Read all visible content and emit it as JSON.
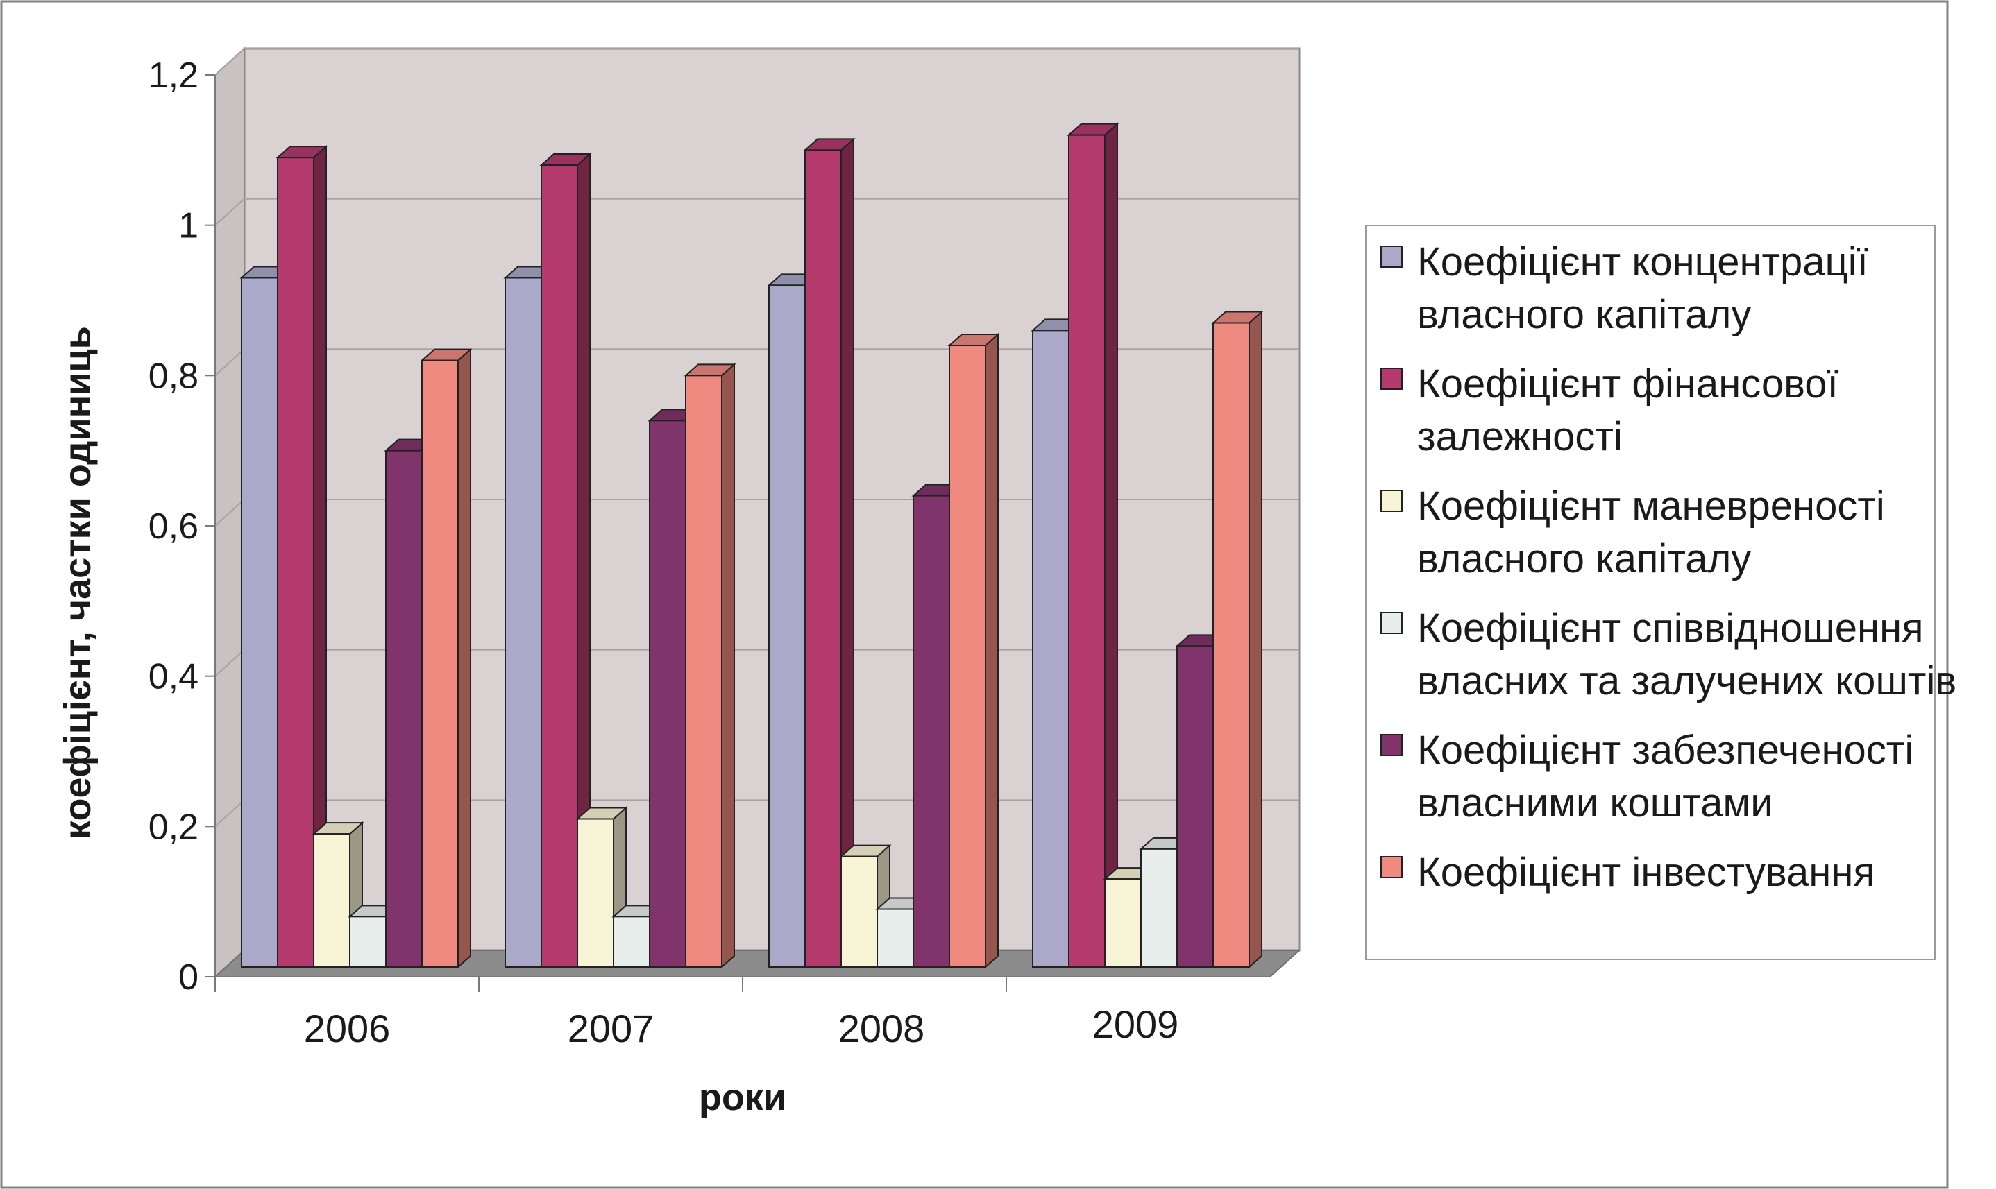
{
  "chart_data": {
    "type": "bar",
    "style": "3d-clustered-column",
    "categories": [
      "2006",
      "2007",
      "2008",
      "2009"
    ],
    "series": [
      {
        "name_lines": [
          "Коефіцієнт концентрації",
          "власного капіталу"
        ],
        "color": "#AAA9CA",
        "values": [
          0.93,
          0.93,
          0.92,
          0.86
        ]
      },
      {
        "name_lines": [
          "Коефіцієнт фінансової",
          "залежності"
        ],
        "color": "#B53A6E",
        "values": [
          1.09,
          1.08,
          1.1,
          1.12
        ]
      },
      {
        "name_lines": [
          "Коефіцієнт маневреності",
          "власного капіталу"
        ],
        "color": "#F8F5D6",
        "values": [
          0.19,
          0.21,
          0.16,
          0.13
        ]
      },
      {
        "name_lines": [
          "Коефіцієнт співвідношення",
          "власних та залучених коштів"
        ],
        "color": "#E8EEEC",
        "values": [
          0.08,
          0.08,
          0.09,
          0.17
        ]
      },
      {
        "name_lines": [
          "Коефіцієнт забезпеченості",
          "власними коштами"
        ],
        "color": "#81336B",
        "values": [
          0.7,
          0.74,
          0.64,
          0.44
        ]
      },
      {
        "name_lines": [
          "Коефіцієнт інвестування"
        ],
        "color": "#EE8A80",
        "values": [
          0.82,
          0.8,
          0.84,
          0.87
        ]
      }
    ],
    "yticks": [
      "0",
      "0,2",
      "0,4",
      "0,6",
      "0,8",
      "1",
      "1,2"
    ],
    "ylim": [
      0,
      1.2
    ],
    "xlabel": "роки",
    "ylabel": "коефіцієнт, частки одиниць",
    "grid": true,
    "legend": "right",
    "plot_background": "#D9D1D2"
  }
}
